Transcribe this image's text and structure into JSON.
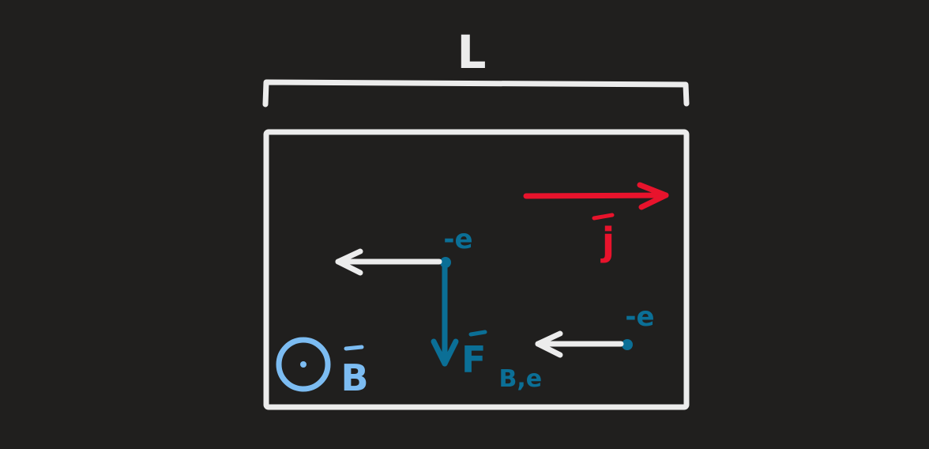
{
  "diagram": {
    "length_label": "L",
    "current_density_label": "j",
    "electron_label": "-e",
    "force_label_main": "F",
    "force_label_sub": "B,e",
    "field_label": "B",
    "field_direction": "out-of-page",
    "colors": {
      "background": "#201f1e",
      "outline": "#ececec",
      "current": "#e8132c",
      "electron": "#0b6f96",
      "field": "#7cbcf2"
    }
  }
}
